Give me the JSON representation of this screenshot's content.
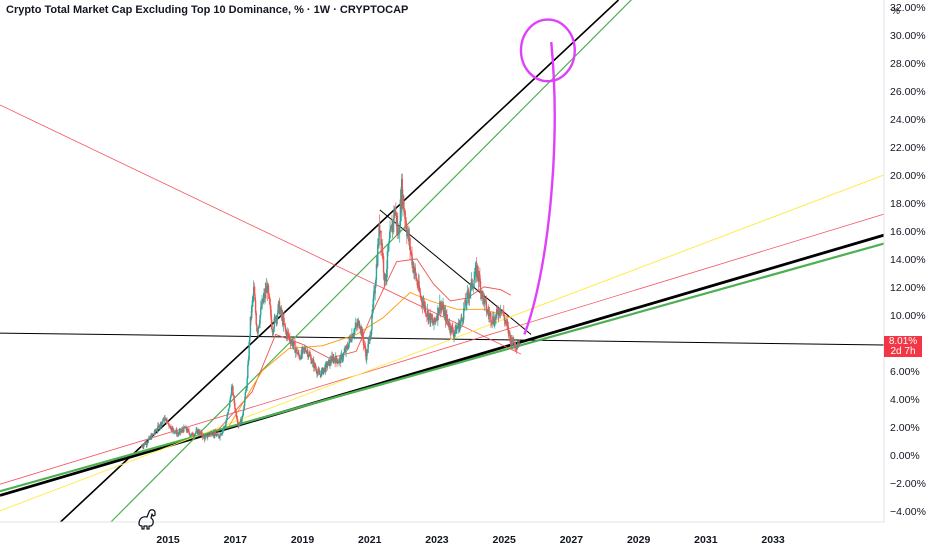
{
  "header": {
    "title": "Crypto Total Market Cap Excluding Top 10 Dominance, % · 1W · CRYPTOCAP",
    "unit_label": "%"
  },
  "price_marker": {
    "value": "8.01%",
    "countdown": "2d 7h",
    "color": "#f23645"
  },
  "colors": {
    "up": "#26a69a",
    "down": "#ef5350",
    "trend_black": "#000000",
    "trend_green": "#4caf50",
    "trend_red": "#f7525f",
    "trend_yellow": "#ffeb3b",
    "annotation": "#e040fb",
    "ma_orange": "#ff9800"
  },
  "icons": {
    "watermark": "tradingview-dino-icon"
  },
  "chart_data": {
    "type": "candlestick",
    "title": "Crypto Total Market Cap Excluding Top 10 Dominance, % · 1W · CRYPTOCAP",
    "ylim": [
      -4.8,
      32.5
    ],
    "y_ticks": [
      "32.00%",
      "30.00%",
      "28.00%",
      "26.00%",
      "24.00%",
      "22.00%",
      "20.00%",
      "18.00%",
      "16.00%",
      "14.00%",
      "12.00%",
      "10.00%",
      "6.00%",
      "4.00%",
      "2.00%",
      "0.00%",
      "−2.00%",
      "−4.00%"
    ],
    "y_tick_values": [
      32,
      30,
      28,
      26,
      24,
      22,
      20,
      18,
      16,
      14,
      12,
      10,
      6,
      4,
      2,
      0,
      -2,
      -4
    ],
    "x_ticks": [
      "2015",
      "2017",
      "2019",
      "2021",
      "2023",
      "2025",
      "2027",
      "2029",
      "2031",
      "2033"
    ],
    "x_tick_values": [
      2015,
      2017,
      2019,
      2021,
      2023,
      2025,
      2027,
      2029,
      2031,
      2033
    ],
    "xlim": [
      2010.0,
      2036.3
    ],
    "last_value": 8.01,
    "price_path": [
      [
        2014.2,
        0.6
      ],
      [
        2014.4,
        1.0
      ],
      [
        2014.6,
        1.6
      ],
      [
        2014.8,
        2.3
      ],
      [
        2014.9,
        2.6
      ],
      [
        2015.1,
        1.9
      ],
      [
        2015.3,
        1.5
      ],
      [
        2015.5,
        1.9
      ],
      [
        2015.7,
        1.4
      ],
      [
        2015.9,
        1.7
      ],
      [
        2016.1,
        1.2
      ],
      [
        2016.3,
        1.6
      ],
      [
        2016.5,
        1.3
      ],
      [
        2016.7,
        2.1
      ],
      [
        2016.8,
        3.2
      ],
      [
        2016.9,
        4.9
      ],
      [
        2017.0,
        3.2
      ],
      [
        2017.1,
        2.1
      ],
      [
        2017.2,
        2.6
      ],
      [
        2017.35,
        5.2
      ],
      [
        2017.45,
        9.5
      ],
      [
        2017.55,
        11.8
      ],
      [
        2017.65,
        8.8
      ],
      [
        2017.8,
        10.8
      ],
      [
        2017.95,
        12.0
      ],
      [
        2018.1,
        9.0
      ],
      [
        2018.3,
        10.6
      ],
      [
        2018.5,
        8.8
      ],
      [
        2018.7,
        8.0
      ],
      [
        2018.9,
        7.0
      ],
      [
        2019.1,
        7.6
      ],
      [
        2019.3,
        6.6
      ],
      [
        2019.5,
        5.7
      ],
      [
        2019.7,
        6.3
      ],
      [
        2019.9,
        6.9
      ],
      [
        2020.1,
        6.7
      ],
      [
        2020.3,
        7.5
      ],
      [
        2020.5,
        8.8
      ],
      [
        2020.7,
        9.5
      ],
      [
        2020.9,
        7.0
      ],
      [
        2021.05,
        9.2
      ],
      [
        2021.2,
        13.5
      ],
      [
        2021.3,
        16.6
      ],
      [
        2021.45,
        12.4
      ],
      [
        2021.6,
        15.4
      ],
      [
        2021.75,
        17.6
      ],
      [
        2021.85,
        15.6
      ],
      [
        2021.95,
        19.0
      ],
      [
        2022.1,
        16.2
      ],
      [
        2022.3,
        13.4
      ],
      [
        2022.5,
        11.4
      ],
      [
        2022.7,
        10.2
      ],
      [
        2022.9,
        9.3
      ],
      [
        2023.1,
        10.8
      ],
      [
        2023.3,
        9.6
      ],
      [
        2023.5,
        8.7
      ],
      [
        2023.7,
        9.4
      ],
      [
        2023.9,
        11.2
      ],
      [
        2024.1,
        12.6
      ],
      [
        2024.2,
        13.2
      ],
      [
        2024.35,
        11.4
      ],
      [
        2024.5,
        10.2
      ],
      [
        2024.7,
        9.6
      ],
      [
        2024.9,
        10.6
      ],
      [
        2025.05,
        9.4
      ],
      [
        2025.2,
        8.2
      ],
      [
        2025.35,
        7.9
      ],
      [
        2025.45,
        8.01
      ]
    ],
    "moving_averages": [
      {
        "name": "",
        "color": "#ef5350",
        "points": [
          [
            2016.5,
            1.8
          ],
          [
            2017.5,
            4.5
          ],
          [
            2018.2,
            8.6
          ],
          [
            2019.0,
            7.9
          ],
          [
            2019.8,
            6.9
          ],
          [
            2020.6,
            7.4
          ],
          [
            2021.2,
            10.8
          ],
          [
            2021.8,
            13.8
          ],
          [
            2022.4,
            14.0
          ],
          [
            2022.9,
            12.2
          ],
          [
            2023.4,
            11.0
          ],
          [
            2023.9,
            11.2
          ],
          [
            2024.4,
            12.0
          ],
          [
            2024.9,
            11.8
          ],
          [
            2025.2,
            11.4
          ]
        ]
      },
      {
        "name": "",
        "color": "#ff9800",
        "points": [
          [
            2016.8,
            2.0
          ],
          [
            2017.8,
            6.0
          ],
          [
            2018.6,
            7.6
          ],
          [
            2019.6,
            7.8
          ],
          [
            2020.6,
            8.6
          ],
          [
            2021.4,
            9.8
          ],
          [
            2022.2,
            11.6
          ],
          [
            2022.8,
            11.0
          ],
          [
            2023.6,
            10.4
          ],
          [
            2024.4,
            10.4
          ],
          [
            2025.2,
            9.8
          ]
        ]
      }
    ],
    "trendlines": [
      {
        "name": "",
        "color": "#000000",
        "width": 1.6,
        "from": [
          2011.8,
          -4.8
        ],
        "to": [
          2028.4,
          32.5
        ]
      },
      {
        "name": "",
        "color": "#000000",
        "width": 2.8,
        "from": [
          2010.0,
          -2.9
        ],
        "to": [
          2036.3,
          15.7
        ]
      },
      {
        "name": "",
        "color": "#000000",
        "width": 1.0,
        "from": [
          2010.0,
          8.7
        ],
        "to": [
          2036.3,
          7.85
        ]
      },
      {
        "name": "",
        "color": "#000000",
        "width": 1.0,
        "from": [
          2021.3,
          17.5
        ],
        "to": [
          2025.8,
          8.6
        ]
      },
      {
        "name": "",
        "color": "#4caf50",
        "width": 1.2,
        "from": [
          2013.3,
          -4.8
        ],
        "to": [
          2029.4,
          34.0
        ]
      },
      {
        "name": "",
        "color": "#4caf50",
        "width": 2.2,
        "from": [
          2010.0,
          -2.6
        ],
        "to": [
          2036.3,
          15.1
        ]
      },
      {
        "name": "",
        "color": "#f7525f",
        "width": 0.8,
        "from": [
          2010.0,
          25.0
        ],
        "to": [
          2025.5,
          7.2
        ]
      },
      {
        "name": "",
        "color": "#f7525f",
        "width": 0.8,
        "from": [
          2010.0,
          -2.1
        ],
        "to": [
          2036.3,
          17.2
        ]
      },
      {
        "name": "",
        "color": "#ffeb3b",
        "width": 0.9,
        "from": [
          2010.0,
          -4.0
        ],
        "to": [
          2036.3,
          20.0
        ]
      }
    ],
    "annotation": {
      "color": "#e040fb",
      "circle_center": [
        2026.3,
        28.9
      ],
      "circle_radius_years": 0.8,
      "circle_radius_pct": 2.2,
      "arrow_path": [
        [
          2025.6,
          8.6
        ],
        [
          2026.3,
          13.0
        ],
        [
          2026.7,
          22.0
        ],
        [
          2026.4,
          29.5
        ]
      ]
    }
  }
}
